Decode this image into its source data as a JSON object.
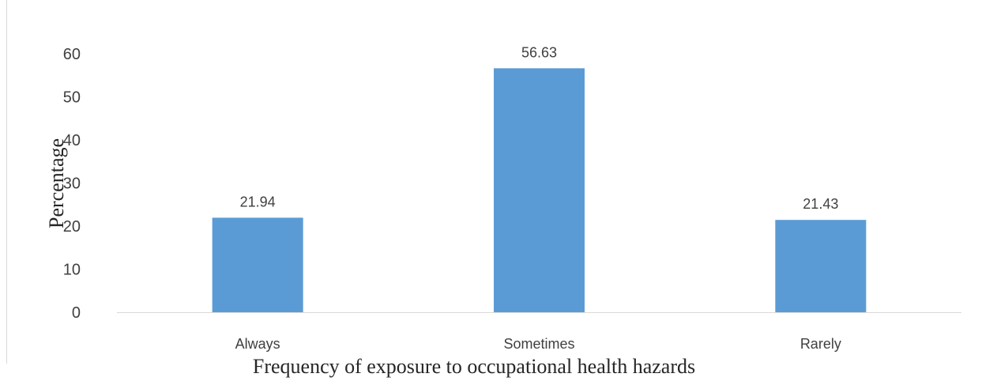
{
  "chart_data": {
    "type": "bar",
    "categories": [
      "Always",
      "Sometimes",
      "Rarely"
    ],
    "values": [
      21.94,
      56.63,
      21.43
    ],
    "data_labels": [
      "21.94",
      "56.63",
      "21.43"
    ],
    "title": "",
    "xlabel": "Frequency of exposure to occupational health hazards",
    "ylabel": "Percentage",
    "ylim": [
      0,
      60
    ],
    "yticks": [
      0,
      10,
      20,
      30,
      40,
      50,
      60
    ],
    "grid": false,
    "legend": "none",
    "bar_color": "#5b9bd5",
    "axis_color": "#d9d9d9",
    "text_color": "#404040"
  }
}
